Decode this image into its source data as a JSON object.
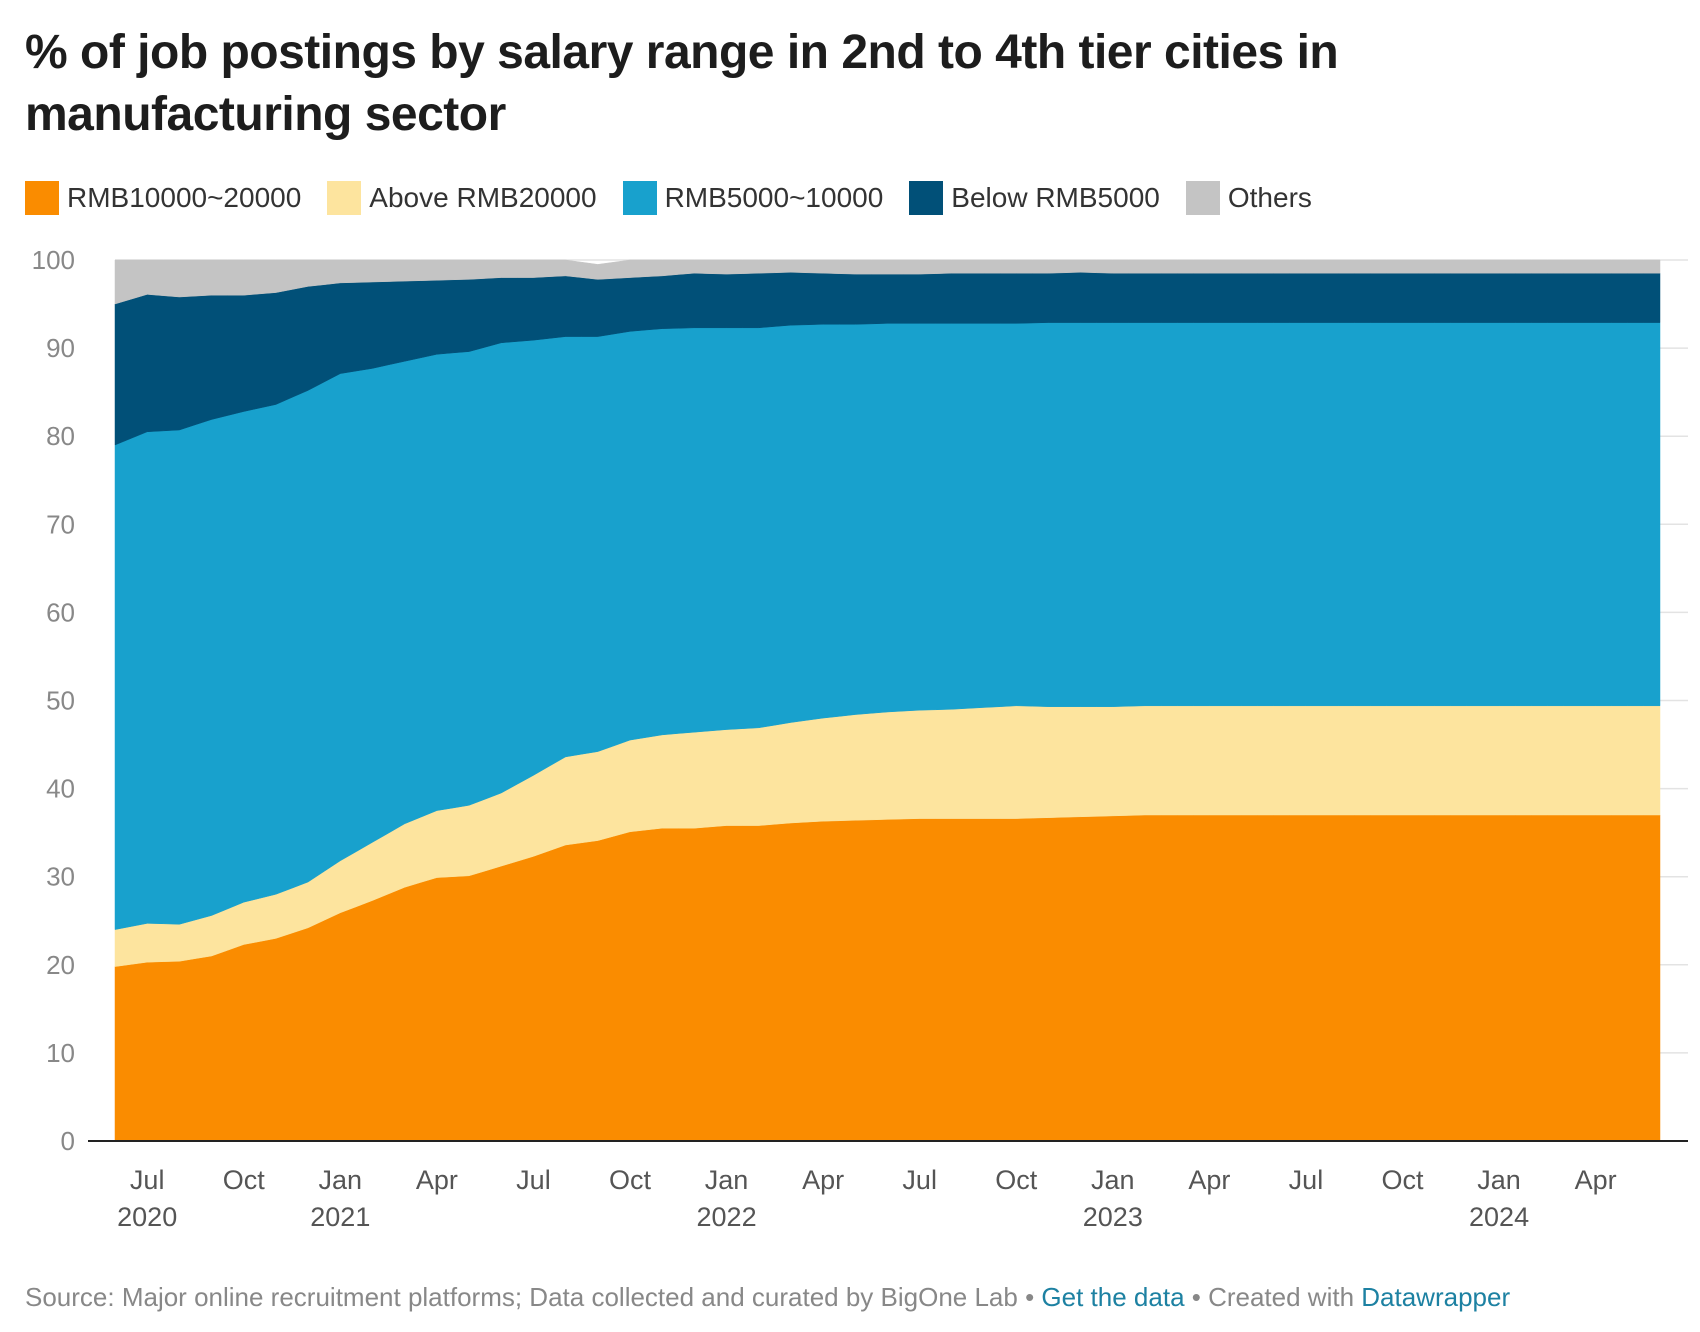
{
  "title": "% of job postings by salary range in 2nd to 4th tier cities in manufacturing sector",
  "legend": [
    {
      "label": "RMB10000~20000",
      "color": "#fa8c00"
    },
    {
      "label": "Above RMB20000",
      "color": "#fde49e"
    },
    {
      "label": "RMB5000~10000",
      "color": "#18a1cd"
    },
    {
      "label": "Below RMB5000",
      "color": "#015078"
    },
    {
      "label": "Others",
      "color": "#c4c4c4"
    }
  ],
  "footer": {
    "source": "Source: Major online recruitment platforms; Data collected and curated by BigOne Lab",
    "sep1": " • ",
    "get_data": "Get the data",
    "sep2": " • Created with ",
    "datawrapper": "Datawrapper"
  },
  "chart_data": {
    "type": "area",
    "stacked": true,
    "title": "% of job postings by salary range in 2nd to 4th tier cities in manufacturing sector",
    "xlabel": "",
    "ylabel": "",
    "ylim": [
      0,
      100
    ],
    "yticks": [
      0,
      10,
      20,
      30,
      40,
      50,
      60,
      70,
      80,
      90,
      100
    ],
    "grid": true,
    "legend_position": "top-left",
    "x_start": "2020-06",
    "x_end": "2024-06",
    "x_step": "half-month",
    "xtick_labels": [
      {
        "month": "Jul",
        "year": "2020",
        "index": 2
      },
      {
        "month": "Oct",
        "year": "",
        "index": 8
      },
      {
        "month": "Jan",
        "year": "2021",
        "index": 14
      },
      {
        "month": "Apr",
        "year": "",
        "index": 20
      },
      {
        "month": "Jul",
        "year": "",
        "index": 26
      },
      {
        "month": "Oct",
        "year": "",
        "index": 32
      },
      {
        "month": "Jan",
        "year": "2022",
        "index": 38
      },
      {
        "month": "Apr",
        "year": "",
        "index": 44
      },
      {
        "month": "Jul",
        "year": "",
        "index": 50
      },
      {
        "month": "Oct",
        "year": "",
        "index": 56
      },
      {
        "month": "Jan",
        "year": "2023",
        "index": 62
      },
      {
        "month": "Apr",
        "year": "",
        "index": 68
      },
      {
        "month": "Jul",
        "year": "",
        "index": 74
      },
      {
        "month": "Oct",
        "year": "",
        "index": 80
      },
      {
        "month": "Jan",
        "year": "2024",
        "index": 86
      },
      {
        "month": "Apr",
        "year": "",
        "index": 92
      }
    ],
    "keyframes": [
      0,
      2,
      4,
      6,
      8,
      10,
      12,
      14,
      16,
      18,
      20,
      22,
      24,
      26,
      28,
      30,
      32,
      34,
      36,
      38,
      40,
      42,
      44,
      46,
      48,
      50,
      52,
      54,
      56,
      58,
      60,
      62,
      64,
      66,
      68,
      70,
      72,
      74,
      76,
      78,
      80,
      82,
      84,
      86,
      88,
      90,
      92,
      94,
      96
    ],
    "series": [
      {
        "name": "RMB10000~20000",
        "color": "#fa8c00",
        "values": [
          19.8,
          20.3,
          20.4,
          21.0,
          22.3,
          23.0,
          24.2,
          25.9,
          27.3,
          28.8,
          29.9,
          30.1,
          31.2,
          32.3,
          33.6,
          34.1,
          35.1,
          35.5,
          35.5,
          35.8,
          35.8,
          36.1,
          36.3,
          36.4,
          36.5,
          36.6,
          36.6,
          36.6,
          36.6,
          36.7,
          36.8,
          36.9,
          37.0,
          37.0,
          37.0,
          37.0,
          37.0,
          37.0,
          37.0,
          37.0,
          37.0,
          37.0,
          37.0,
          37.0,
          37.0,
          37.0,
          37.0,
          37.0,
          37.0
        ]
      },
      {
        "name": "Above RMB20000",
        "color": "#fde49e",
        "values": [
          4.2,
          4.4,
          4.2,
          4.6,
          4.8,
          5.0,
          5.2,
          5.9,
          6.6,
          7.2,
          7.6,
          8.0,
          8.3,
          9.2,
          10.0,
          10.1,
          10.4,
          10.6,
          10.9,
          10.9,
          11.1,
          11.4,
          11.7,
          12.0,
          12.2,
          12.3,
          12.4,
          12.6,
          12.8,
          12.6,
          12.5,
          12.4,
          12.4,
          12.4,
          12.4,
          12.4,
          12.4,
          12.4,
          12.4,
          12.4,
          12.4,
          12.4,
          12.4,
          12.4,
          12.4,
          12.4,
          12.4,
          12.4,
          12.4
        ]
      },
      {
        "name": "RMB5000~10000",
        "color": "#18a1cd",
        "values": [
          55.0,
          55.8,
          56.1,
          56.3,
          55.7,
          55.6,
          55.8,
          55.3,
          53.8,
          52.5,
          51.8,
          51.5,
          51.1,
          49.4,
          47.7,
          47.1,
          46.4,
          46.1,
          45.9,
          45.6,
          45.4,
          45.1,
          44.7,
          44.3,
          44.1,
          43.9,
          43.8,
          43.6,
          43.4,
          43.6,
          43.6,
          43.6,
          43.5,
          43.5,
          43.5,
          43.5,
          43.5,
          43.5,
          43.5,
          43.5,
          43.5,
          43.5,
          43.5,
          43.5,
          43.5,
          43.5,
          43.5,
          43.5,
          43.5
        ]
      },
      {
        "name": "Below RMB5000",
        "color": "#015078",
        "values": [
          16.0,
          15.6,
          15.1,
          14.1,
          13.2,
          12.7,
          11.8,
          10.3,
          9.8,
          9.1,
          8.4,
          8.2,
          7.4,
          7.1,
          6.9,
          6.5,
          6.1,
          6.0,
          6.2,
          6.1,
          6.2,
          6.0,
          5.8,
          5.7,
          5.6,
          5.6,
          5.7,
          5.7,
          5.7,
          5.6,
          5.7,
          5.6,
          5.6,
          5.6,
          5.6,
          5.6,
          5.6,
          5.6,
          5.6,
          5.6,
          5.6,
          5.6,
          5.6,
          5.6,
          5.6,
          5.6,
          5.6,
          5.6,
          5.6
        ]
      },
      {
        "name": "Others",
        "color": "#c4c4c4",
        "values": [
          5.0,
          3.9,
          4.2,
          4.0,
          4.0,
          3.7,
          3.0,
          2.6,
          2.5,
          2.4,
          2.3,
          2.2,
          2.0,
          2.0,
          1.8,
          1.7,
          2.0,
          1.8,
          1.5,
          1.6,
          1.5,
          1.4,
          1.5,
          1.6,
          1.6,
          1.6,
          1.5,
          1.5,
          1.5,
          1.5,
          1.4,
          1.5,
          1.5,
          1.5,
          1.5,
          1.5,
          1.5,
          1.5,
          1.5,
          1.5,
          1.5,
          1.5,
          1.5,
          1.5,
          1.5,
          1.5,
          1.5,
          1.5,
          1.5
        ]
      }
    ]
  }
}
